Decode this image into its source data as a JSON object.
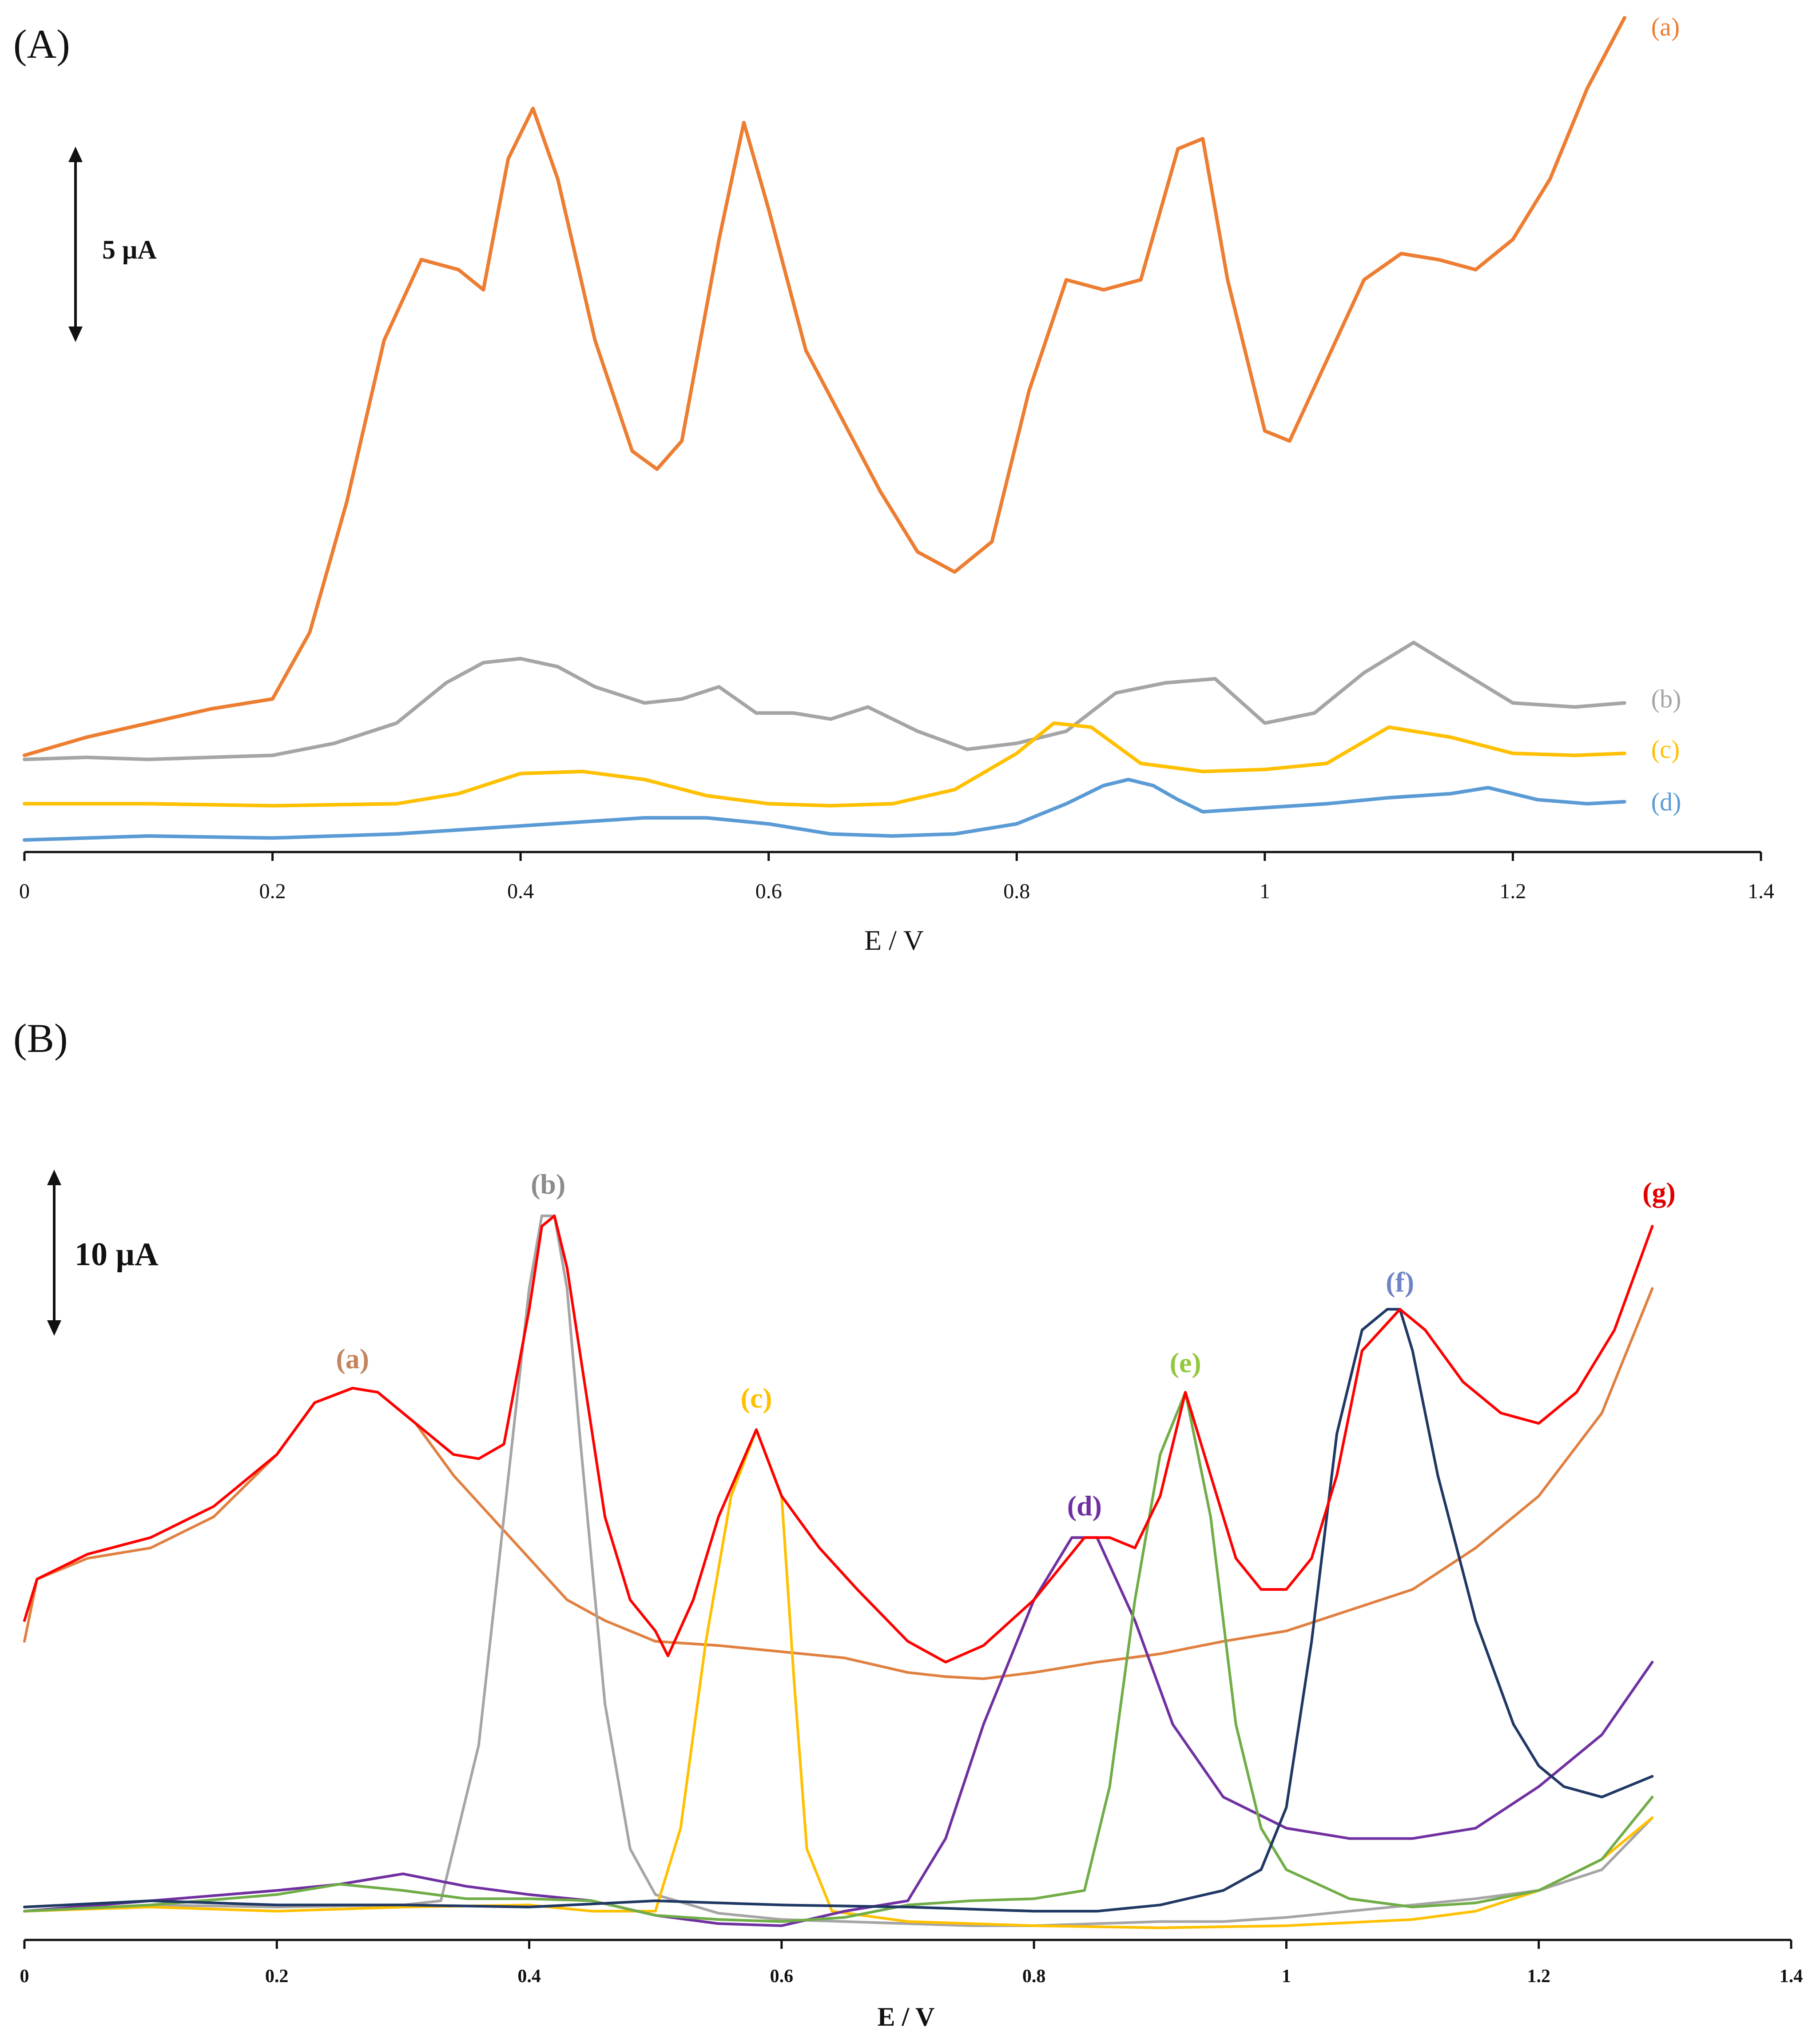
{
  "figure": {
    "panels": [
      {
        "id": "A",
        "label": "(A)",
        "scale_bar": "5 µA",
        "xlabel": "E / V"
      },
      {
        "id": "B",
        "label": "(B)",
        "scale_bar": "10 µA",
        "xlabel": "E / V"
      }
    ]
  },
  "chart_data": [
    {
      "panel": "A",
      "type": "line",
      "title": "",
      "xlabel": "E / V",
      "ylabel": "",
      "xlim": [
        0,
        1.4
      ],
      "xticks": [
        0,
        0.2,
        0.4,
        0.6,
        0.8,
        1,
        1.2,
        1.4
      ],
      "xtick_labels": [
        "0",
        "0.2",
        "0.4",
        "0.6",
        "0.8",
        "1",
        "1.2",
        "1.4"
      ],
      "ylim": [
        0,
        41
      ],
      "y_unit": "µA (relative)",
      "scale_bar": {
        "label": "5 µA",
        "value": 5
      },
      "series": [
        {
          "name": "(a)",
          "color": "#ED7D31",
          "x": [
            0.0,
            0.05,
            0.1,
            0.15,
            0.2,
            0.23,
            0.26,
            0.29,
            0.32,
            0.35,
            0.37,
            0.39,
            0.41,
            0.43,
            0.46,
            0.49,
            0.51,
            0.53,
            0.56,
            0.58,
            0.6,
            0.63,
            0.66,
            0.69,
            0.72,
            0.75,
            0.78,
            0.81,
            0.84,
            0.87,
            0.9,
            0.93,
            0.95,
            0.97,
            1.0,
            1.02,
            1.05,
            1.08,
            1.11,
            1.14,
            1.17,
            1.2,
            1.23,
            1.26,
            1.29
          ],
          "y": [
            4.4,
            5.3,
            6.0,
            6.7,
            7.2,
            10.5,
            17.0,
            25.0,
            29.0,
            28.5,
            27.5,
            34.0,
            36.5,
            33.0,
            25.0,
            19.5,
            18.6,
            20.0,
            30.0,
            35.8,
            31.5,
            24.5,
            21.0,
            17.5,
            14.5,
            13.5,
            15.0,
            22.5,
            28.0,
            27.5,
            28.0,
            34.5,
            35.0,
            28.0,
            20.5,
            20.0,
            24.0,
            28.0,
            29.3,
            29.0,
            28.5,
            30.0,
            33.0,
            37.5,
            41.0
          ]
        },
        {
          "name": "(b)",
          "color": "#A5A5A5",
          "x": [
            0.0,
            0.05,
            0.1,
            0.15,
            0.2,
            0.25,
            0.3,
            0.34,
            0.37,
            0.4,
            0.43,
            0.46,
            0.5,
            0.53,
            0.56,
            0.59,
            0.62,
            0.65,
            0.68,
            0.72,
            0.76,
            0.8,
            0.84,
            0.88,
            0.92,
            0.96,
            1.0,
            1.04,
            1.08,
            1.12,
            1.16,
            1.2,
            1.25,
            1.29
          ],
          "y": [
            4.2,
            4.3,
            4.2,
            4.3,
            4.4,
            5.0,
            6.0,
            8.0,
            9.0,
            9.2,
            8.8,
            7.8,
            7.0,
            7.2,
            7.8,
            6.5,
            6.5,
            6.2,
            6.8,
            5.6,
            4.7,
            5.0,
            5.6,
            7.5,
            8.0,
            8.2,
            6.0,
            6.5,
            8.5,
            10.0,
            8.5,
            7.0,
            6.8,
            7.0
          ]
        },
        {
          "name": "(c)",
          "color": "#FFC000",
          "x": [
            0.0,
            0.1,
            0.2,
            0.3,
            0.35,
            0.4,
            0.45,
            0.5,
            0.55,
            0.6,
            0.65,
            0.7,
            0.75,
            0.8,
            0.83,
            0.86,
            0.9,
            0.95,
            1.0,
            1.05,
            1.1,
            1.15,
            1.2,
            1.25,
            1.29
          ],
          "y": [
            2.0,
            2.0,
            1.9,
            2.0,
            2.5,
            3.5,
            3.6,
            3.2,
            2.4,
            2.0,
            1.9,
            2.0,
            2.7,
            4.5,
            6.0,
            5.8,
            4.0,
            3.6,
            3.7,
            4.0,
            5.8,
            5.3,
            4.5,
            4.4,
            4.5
          ]
        },
        {
          "name": "(d)",
          "color": "#5B9BD5",
          "x": [
            0.0,
            0.1,
            0.2,
            0.3,
            0.4,
            0.45,
            0.5,
            0.55,
            0.6,
            0.65,
            0.7,
            0.75,
            0.8,
            0.84,
            0.87,
            0.89,
            0.91,
            0.93,
            0.95,
            1.0,
            1.05,
            1.1,
            1.15,
            1.18,
            1.22,
            1.26,
            1.29
          ],
          "y": [
            0.2,
            0.4,
            0.3,
            0.5,
            0.9,
            1.1,
            1.3,
            1.3,
            1.0,
            0.5,
            0.4,
            0.5,
            1.0,
            2.0,
            2.9,
            3.2,
            2.9,
            2.2,
            1.6,
            1.8,
            2.0,
            2.3,
            2.5,
            2.8,
            2.2,
            2.0,
            2.1
          ]
        }
      ]
    },
    {
      "panel": "B",
      "type": "line",
      "title": "",
      "xlabel": "E / V",
      "ylabel": "",
      "xlim": [
        0,
        1.4
      ],
      "xticks": [
        0,
        0.2,
        0.4,
        0.6,
        0.8,
        1,
        1.2,
        1.4
      ],
      "xtick_labels": [
        "0",
        "0.2",
        "0.4",
        "0.6",
        "0.8",
        "1",
        "1.2",
        "1.4"
      ],
      "ylim": [
        0,
        40
      ],
      "y_unit": "µA (relative)",
      "scale_bar": {
        "label": "10 µA",
        "value": 10
      },
      "series": [
        {
          "name": "(a)",
          "color": "#E08040",
          "x": [
            0.0,
            0.01,
            0.05,
            0.1,
            0.15,
            0.2,
            0.23,
            0.26,
            0.28,
            0.31,
            0.34,
            0.37,
            0.4,
            0.43,
            0.46,
            0.5,
            0.55,
            0.6,
            0.65,
            0.7,
            0.73,
            0.76,
            0.8,
            0.85,
            0.9,
            0.95,
            1.0,
            1.05,
            1.1,
            1.15,
            1.2,
            1.25,
            1.29
          ],
          "y": [
            14.0,
            17.0,
            18.0,
            18.5,
            20.0,
            23.0,
            25.5,
            26.2,
            26.0,
            24.5,
            22.0,
            20.0,
            18.0,
            16.0,
            15.0,
            14.0,
            13.8,
            13.5,
            13.2,
            12.5,
            12.3,
            12.2,
            12.5,
            13.0,
            13.4,
            14.0,
            14.5,
            15.5,
            16.5,
            18.5,
            21.0,
            25.0,
            31.0
          ]
        },
        {
          "name": "(b)",
          "color": "#A5A5A5",
          "x": [
            0.0,
            0.1,
            0.2,
            0.3,
            0.33,
            0.36,
            0.38,
            0.4,
            0.41,
            0.42,
            0.43,
            0.44,
            0.46,
            0.48,
            0.5,
            0.55,
            0.6,
            0.65,
            0.7,
            0.75,
            0.8,
            0.85,
            0.9,
            0.95,
            1.0,
            1.05,
            1.1,
            1.15,
            1.2,
            1.25,
            1.29
          ],
          "y": [
            1.0,
            1.3,
            1.2,
            1.3,
            1.5,
            9.0,
            20.0,
            31.0,
            34.5,
            34.5,
            31.0,
            24.0,
            11.0,
            4.0,
            1.8,
            0.9,
            0.6,
            0.5,
            0.4,
            0.3,
            0.3,
            0.4,
            0.5,
            0.5,
            0.7,
            1.0,
            1.3,
            1.6,
            2.0,
            3.0,
            5.5
          ]
        },
        {
          "name": "(c)",
          "color": "#FFC000",
          "x": [
            0.0,
            0.1,
            0.2,
            0.3,
            0.4,
            0.45,
            0.5,
            0.52,
            0.54,
            0.56,
            0.58,
            0.6,
            0.61,
            0.62,
            0.64,
            0.7,
            0.8,
            0.9,
            1.0,
            1.1,
            1.15,
            1.2,
            1.25,
            1.29
          ],
          "y": [
            1.0,
            1.2,
            1.0,
            1.2,
            1.3,
            1.0,
            1.0,
            5.0,
            14.0,
            21.0,
            24.2,
            21.0,
            12.0,
            4.0,
            1.0,
            0.5,
            0.3,
            0.2,
            0.3,
            0.6,
            1.0,
            2.0,
            3.5,
            5.5
          ]
        },
        {
          "name": "(d)",
          "color": "#7030A0",
          "x": [
            0.0,
            0.1,
            0.2,
            0.25,
            0.3,
            0.35,
            0.4,
            0.45,
            0.5,
            0.55,
            0.6,
            0.65,
            0.7,
            0.73,
            0.76,
            0.8,
            0.83,
            0.85,
            0.88,
            0.91,
            0.95,
            1.0,
            1.05,
            1.1,
            1.15,
            1.2,
            1.25,
            1.29
          ],
          "y": [
            1.0,
            1.5,
            2.0,
            2.3,
            2.8,
            2.2,
            1.8,
            1.5,
            0.8,
            0.4,
            0.3,
            1.0,
            1.5,
            4.5,
            10.0,
            16.0,
            19.0,
            19.0,
            15.0,
            10.0,
            6.5,
            5.0,
            4.5,
            4.5,
            5.0,
            7.0,
            9.5,
            13.0
          ]
        },
        {
          "name": "(e)",
          "color": "#70AD47",
          "x": [
            0.0,
            0.1,
            0.2,
            0.25,
            0.3,
            0.35,
            0.4,
            0.45,
            0.5,
            0.55,
            0.6,
            0.65,
            0.7,
            0.75,
            0.8,
            0.84,
            0.86,
            0.88,
            0.9,
            0.92,
            0.94,
            0.96,
            0.98,
            1.0,
            1.05,
            1.1,
            1.15,
            1.2,
            1.25,
            1.29
          ],
          "y": [
            1.0,
            1.3,
            1.8,
            2.3,
            2.0,
            1.6,
            1.6,
            1.5,
            0.8,
            0.6,
            0.5,
            0.7,
            1.3,
            1.5,
            1.6,
            2.0,
            7.0,
            16.0,
            23.0,
            26.0,
            20.0,
            10.0,
            5.0,
            3.0,
            1.6,
            1.2,
            1.4,
            2.0,
            3.5,
            6.5
          ]
        },
        {
          "name": "(f)",
          "color": "#203864",
          "x": [
            0.0,
            0.1,
            0.2,
            0.3,
            0.4,
            0.5,
            0.6,
            0.7,
            0.8,
            0.85,
            0.9,
            0.95,
            0.98,
            1.0,
            1.02,
            1.04,
            1.06,
            1.08,
            1.09,
            1.1,
            1.12,
            1.15,
            1.18,
            1.2,
            1.22,
            1.25,
            1.29
          ],
          "y": [
            1.2,
            1.5,
            1.3,
            1.3,
            1.2,
            1.5,
            1.3,
            1.2,
            1.0,
            1.0,
            1.3,
            2.0,
            3.0,
            6.0,
            14.0,
            24.0,
            29.0,
            30.0,
            30.0,
            28.0,
            22.0,
            15.0,
            10.0,
            8.0,
            7.0,
            6.5,
            7.5
          ]
        },
        {
          "name": "(g)",
          "color": "#FF0000",
          "x": [
            0.0,
            0.01,
            0.05,
            0.1,
            0.15,
            0.2,
            0.23,
            0.26,
            0.28,
            0.31,
            0.34,
            0.36,
            0.38,
            0.4,
            0.41,
            0.42,
            0.43,
            0.44,
            0.46,
            0.48,
            0.5,
            0.51,
            0.53,
            0.55,
            0.58,
            0.6,
            0.63,
            0.66,
            0.7,
            0.73,
            0.76,
            0.8,
            0.84,
            0.86,
            0.88,
            0.9,
            0.92,
            0.94,
            0.96,
            0.98,
            1.0,
            1.02,
            1.04,
            1.06,
            1.09,
            1.11,
            1.14,
            1.17,
            1.2,
            1.23,
            1.26,
            1.29
          ],
          "y": [
            15.0,
            17.0,
            18.2,
            19.0,
            20.5,
            23.0,
            25.5,
            26.2,
            26.0,
            24.5,
            23.0,
            22.8,
            23.5,
            30.0,
            34.0,
            34.5,
            32.0,
            28.0,
            20.0,
            16.0,
            14.5,
            13.3,
            16.0,
            20.0,
            24.2,
            21.0,
            18.5,
            16.5,
            14.0,
            13.0,
            13.8,
            16.0,
            19.0,
            19.0,
            18.5,
            21.0,
            26.0,
            22.0,
            18.0,
            16.5,
            16.5,
            18.0,
            22.0,
            28.0,
            30.0,
            29.0,
            26.5,
            25.0,
            24.5,
            26.0,
            29.0,
            34.0
          ]
        }
      ],
      "annotations": [
        {
          "text": "(a)",
          "color": "#C4845E"
        },
        {
          "text": "(b)",
          "color": "#8C8C8C"
        },
        {
          "text": "(c)",
          "color": "#FFC000"
        },
        {
          "text": "(d)",
          "color": "#7030A0"
        },
        {
          "text": "(e)",
          "color": "#92C83E"
        },
        {
          "text": "(f)",
          "color": "#6E84C4"
        },
        {
          "text": "(g)",
          "color": "#E00000"
        }
      ]
    }
  ]
}
